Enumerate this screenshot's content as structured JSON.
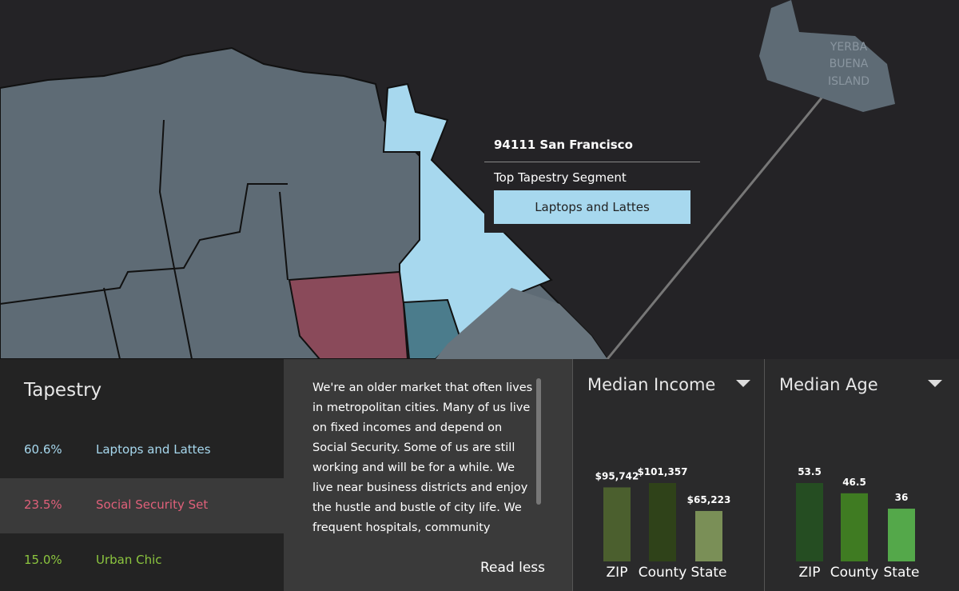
{
  "map": {
    "island_label": [
      "YERBA",
      "BUENA",
      "ISLAND"
    ],
    "popup": {
      "title": "94111 San Francisco",
      "subtitle": "Top Tapestry Segment",
      "segment": "Laptops and Lattes"
    }
  },
  "tapestry": {
    "title": "Tapestry",
    "rows": [
      {
        "percent": "60.6%",
        "name": "Laptops and Lattes",
        "color": "#a7d8ee"
      },
      {
        "percent": "23.5%",
        "name": "Social Security Set",
        "color": "#e0607a"
      },
      {
        "percent": "15.0%",
        "name": "Urban Chic",
        "color": "#8cc63f"
      }
    ]
  },
  "description": {
    "text": "We're an older market that often lives in metropolitan cities. Many of us live on fixed incomes and depend on Social Security. Some of us are still working and will be for a while. We live near business districts and enjoy the hustle and bustle of city life. We frequent hospitals, community centers,",
    "link": "Read less"
  },
  "income_chart": {
    "type": "bar",
    "title": "Median Income",
    "categories": [
      "ZIP",
      "County",
      "State"
    ],
    "values": [
      95742,
      101357,
      65223
    ],
    "value_labels": [
      "$95,742",
      "$101,357",
      "$65,223"
    ],
    "colors": [
      "#4b5f2e",
      "#2f4219",
      "#7a8f57"
    ]
  },
  "age_chart": {
    "type": "bar",
    "title": "Median Age",
    "categories": [
      "ZIP",
      "County",
      "State"
    ],
    "values": [
      53.5,
      46.5,
      36
    ],
    "colors": [
      "#254d22",
      "#3f7b22",
      "#54a84a"
    ]
  }
}
